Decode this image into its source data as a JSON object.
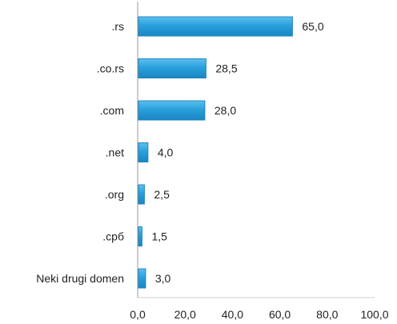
{
  "chart_data": {
    "type": "bar",
    "orientation": "horizontal",
    "title": "",
    "xlabel": "",
    "ylabel": "",
    "categories": [
      ".rs",
      ".co.rs",
      ".com",
      ".net",
      ".org",
      ".срб",
      "Neki drugi domen"
    ],
    "values": [
      65.0,
      28.5,
      28.0,
      4.0,
      2.5,
      1.5,
      3.0
    ],
    "value_labels": [
      "65,0",
      "28,5",
      "28,0",
      "4,0",
      "2,5",
      "1,5",
      "3,0"
    ],
    "xlim": [
      0,
      100
    ],
    "x_ticks": [
      0,
      20,
      40,
      60,
      80,
      100
    ],
    "x_tick_labels": [
      "0,0",
      "20,0",
      "40,0",
      "60,0",
      "80,0",
      "100,0"
    ],
    "grid": false,
    "legend": "none",
    "bar_color": "#29a0dc",
    "bar_edge_color": "#1f86bd"
  }
}
